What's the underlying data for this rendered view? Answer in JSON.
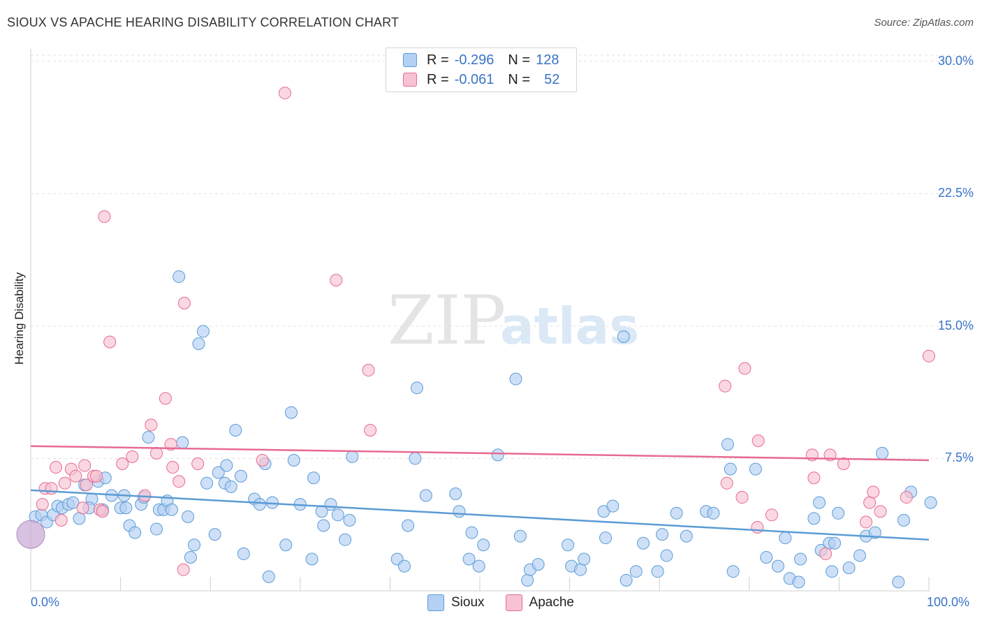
{
  "title": "SIOUX VS APACHE HEARING DISABILITY CORRELATION CHART",
  "source": "Source: ZipAtlas.com",
  "watermark": {
    "part1": "ZIP",
    "part2": "atlas"
  },
  "legend": {
    "rows": [
      {
        "r_label": "R =",
        "r_value": "-0.296",
        "n_label": "N =",
        "n_value": "128",
        "color": "#5b9bd5"
      },
      {
        "r_label": "R =",
        "r_value": "-0.061",
        "n_label": "N =",
        "n_value": "52",
        "color": "#f4a0b9"
      }
    ]
  },
  "chart_data": {
    "type": "scatter",
    "title": "SIOUX VS APACHE HEARING DISABILITY CORRELATION CHART",
    "xlabel": "",
    "ylabel": "Hearing Disability",
    "xlim": [
      0,
      100
    ],
    "ylim": [
      0,
      30.7
    ],
    "x_tick_labels": [
      "0.0%",
      "100.0%"
    ],
    "y_ticks": [
      7.5,
      15.0,
      22.5,
      30.0
    ],
    "y_tick_labels": [
      "7.5%",
      "15.0%",
      "22.5%",
      "30.0%"
    ],
    "grid": "horizontal dashed",
    "legend_position": "top-center and bottom",
    "series": [
      {
        "name": "Sioux",
        "color": "#5b9bd5",
        "fill": "#b4d0f2",
        "trend": {
          "x": [
            0,
            100
          ],
          "y": [
            5.7,
            2.9
          ]
        },
        "points": [
          [
            0.5,
            4.2
          ],
          [
            1.2,
            4.3
          ],
          [
            1.8,
            3.9
          ],
          [
            2.5,
            4.3
          ],
          [
            3.0,
            4.8
          ],
          [
            3.5,
            4.7
          ],
          [
            4.2,
            4.9
          ],
          [
            4.7,
            5.0
          ],
          [
            5.4,
            4.1
          ],
          [
            6.0,
            6.0
          ],
          [
            6.8,
            5.2
          ],
          [
            6.5,
            4.7
          ],
          [
            7.5,
            6.2
          ],
          [
            8.0,
            4.6
          ],
          [
            8.3,
            6.4
          ],
          [
            9.0,
            5.4
          ],
          [
            10.0,
            4.7
          ],
          [
            10.4,
            5.4
          ],
          [
            10.6,
            4.7
          ],
          [
            11.0,
            3.7
          ],
          [
            11.6,
            3.3
          ],
          [
            12.3,
            4.9
          ],
          [
            12.6,
            5.3
          ],
          [
            13.1,
            8.7
          ],
          [
            14.0,
            3.5
          ],
          [
            14.3,
            4.6
          ],
          [
            14.8,
            4.6
          ],
          [
            15.2,
            5.1
          ],
          [
            15.7,
            4.6
          ],
          [
            16.5,
            17.8
          ],
          [
            16.9,
            8.4
          ],
          [
            17.5,
            4.2
          ],
          [
            17.8,
            1.9
          ],
          [
            18.2,
            2.6
          ],
          [
            18.7,
            14.0
          ],
          [
            19.2,
            14.7
          ],
          [
            19.6,
            6.1
          ],
          [
            20.5,
            3.2
          ],
          [
            20.9,
            6.7
          ],
          [
            21.6,
            6.1
          ],
          [
            21.8,
            7.1
          ],
          [
            22.3,
            5.9
          ],
          [
            22.8,
            9.1
          ],
          [
            23.4,
            6.5
          ],
          [
            23.7,
            2.1
          ],
          [
            24.9,
            5.2
          ],
          [
            25.5,
            4.9
          ],
          [
            26.1,
            7.2
          ],
          [
            26.5,
            0.8
          ],
          [
            26.9,
            5.0
          ],
          [
            28.4,
            2.6
          ],
          [
            29.0,
            10.1
          ],
          [
            29.3,
            7.4
          ],
          [
            30.0,
            4.9
          ],
          [
            31.3,
            1.8
          ],
          [
            31.5,
            6.4
          ],
          [
            32.4,
            4.5
          ],
          [
            32.6,
            3.7
          ],
          [
            33.4,
            4.9
          ],
          [
            34.2,
            4.3
          ],
          [
            35.0,
            2.9
          ],
          [
            35.5,
            4.0
          ],
          [
            35.8,
            7.6
          ],
          [
            40.8,
            1.8
          ],
          [
            41.6,
            1.4
          ],
          [
            42.0,
            3.7
          ],
          [
            42.8,
            7.5
          ],
          [
            43.0,
            11.5
          ],
          [
            44.0,
            5.4
          ],
          [
            47.3,
            5.5
          ],
          [
            47.7,
            4.5
          ],
          [
            48.8,
            1.8
          ],
          [
            49.1,
            3.3
          ],
          [
            49.9,
            1.4
          ],
          [
            50.4,
            2.6
          ],
          [
            52.0,
            7.7
          ],
          [
            54.0,
            12.0
          ],
          [
            54.5,
            3.1
          ],
          [
            55.3,
            0.6
          ],
          [
            55.6,
            1.2
          ],
          [
            56.5,
            1.5
          ],
          [
            59.8,
            2.6
          ],
          [
            60.2,
            1.4
          ],
          [
            61.2,
            1.2
          ],
          [
            61.6,
            1.8
          ],
          [
            63.8,
            4.5
          ],
          [
            64.0,
            3.0
          ],
          [
            64.8,
            4.8
          ],
          [
            66.0,
            14.4
          ],
          [
            66.3,
            0.6
          ],
          [
            67.4,
            1.1
          ],
          [
            68.2,
            2.7
          ],
          [
            69.8,
            1.1
          ],
          [
            70.3,
            3.2
          ],
          [
            70.8,
            2.0
          ],
          [
            71.9,
            4.4
          ],
          [
            73.0,
            3.1
          ],
          [
            75.2,
            4.5
          ],
          [
            76.0,
            4.4
          ],
          [
            77.6,
            8.3
          ],
          [
            77.9,
            6.9
          ],
          [
            78.2,
            1.1
          ],
          [
            80.7,
            6.9
          ],
          [
            81.9,
            1.9
          ],
          [
            83.2,
            1.4
          ],
          [
            84.0,
            3.0
          ],
          [
            84.5,
            0.7
          ],
          [
            85.5,
            0.5
          ],
          [
            85.7,
            1.8
          ],
          [
            87.2,
            4.1
          ],
          [
            87.8,
            5.0
          ],
          [
            88.0,
            2.3
          ],
          [
            88.9,
            2.7
          ],
          [
            89.2,
            1.1
          ],
          [
            89.5,
            2.7
          ],
          [
            89.9,
            4.4
          ],
          [
            91.1,
            1.3
          ],
          [
            92.3,
            2.0
          ],
          [
            93.0,
            3.1
          ],
          [
            94.0,
            3.3
          ],
          [
            94.8,
            7.8
          ],
          [
            96.6,
            0.5
          ],
          [
            97.2,
            4.0
          ],
          [
            98.0,
            5.6
          ],
          [
            100.2,
            5.0
          ]
        ]
      },
      {
        "name": "Apache",
        "color": "#e76a92",
        "fill": "#f7c3d3",
        "trend": {
          "x": [
            0,
            100
          ],
          "y": [
            8.2,
            7.4
          ]
        },
        "points": [
          [
            1.3,
            4.9
          ],
          [
            1.6,
            5.8
          ],
          [
            2.3,
            5.8
          ],
          [
            2.8,
            7.0
          ],
          [
            3.4,
            4.0
          ],
          [
            3.8,
            6.1
          ],
          [
            4.5,
            6.9
          ],
          [
            5.0,
            6.5
          ],
          [
            5.8,
            4.7
          ],
          [
            6.0,
            7.1
          ],
          [
            6.2,
            6.0
          ],
          [
            7.0,
            6.5
          ],
          [
            7.3,
            6.5
          ],
          [
            7.7,
            4.6
          ],
          [
            8.0,
            4.5
          ],
          [
            8.2,
            21.2
          ],
          [
            8.8,
            14.1
          ],
          [
            10.2,
            7.2
          ],
          [
            11.3,
            7.6
          ],
          [
            12.7,
            5.4
          ],
          [
            13.4,
            9.4
          ],
          [
            14.0,
            7.8
          ],
          [
            15.0,
            10.9
          ],
          [
            15.6,
            8.3
          ],
          [
            15.8,
            7.0
          ],
          [
            16.5,
            6.2
          ],
          [
            17.1,
            16.3
          ],
          [
            18.6,
            7.2
          ],
          [
            17.0,
            1.2
          ],
          [
            25.8,
            7.4
          ],
          [
            28.3,
            28.2
          ],
          [
            34.0,
            17.6
          ],
          [
            37.6,
            12.5
          ],
          [
            37.8,
            9.1
          ],
          [
            77.3,
            11.6
          ],
          [
            77.5,
            6.1
          ],
          [
            79.2,
            5.3
          ],
          [
            79.5,
            12.6
          ],
          [
            80.9,
            3.6
          ],
          [
            81.0,
            8.5
          ],
          [
            82.5,
            4.3
          ],
          [
            87.0,
            7.7
          ],
          [
            87.2,
            6.4
          ],
          [
            88.5,
            2.1
          ],
          [
            89.0,
            7.7
          ],
          [
            90.5,
            7.2
          ],
          [
            93.0,
            3.9
          ],
          [
            93.4,
            5.0
          ],
          [
            93.8,
            5.6
          ],
          [
            94.6,
            4.5
          ],
          [
            97.5,
            5.3
          ],
          [
            100.0,
            13.3
          ]
        ]
      }
    ]
  }
}
